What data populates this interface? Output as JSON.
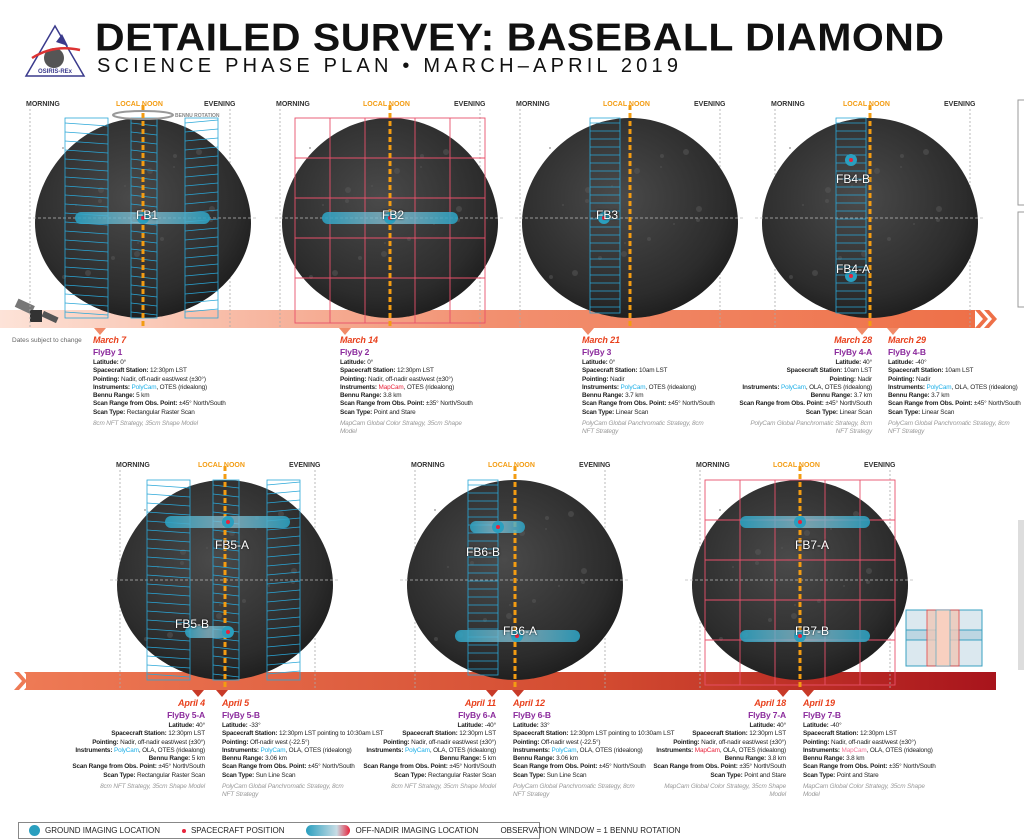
{
  "header": {
    "title": "DETAILED SURVEY: BASEBALL DIAMOND",
    "subtitle": "SCIENCE PHASE PLAN • MARCH–APRIL 2019",
    "logo_text": "OSIRIS-REx"
  },
  "timeline_labels": {
    "morning": "MORNING",
    "local_noon": "LOCAL NOON",
    "evening": "EVENING",
    "bennu_rotation": "BENNU ROTATION"
  },
  "caveat": "Dates subject to change",
  "panels": [
    {
      "labels": [
        "FB1"
      ]
    },
    {
      "labels": [
        "FB2"
      ]
    },
    {
      "labels": [
        "FB3"
      ]
    },
    {
      "labels": [
        "FB4-B",
        "FB4-A"
      ]
    },
    {
      "labels": [
        "FB5-A",
        "FB5-B"
      ]
    },
    {
      "labels": [
        "FB6-B",
        "FB6-A"
      ]
    },
    {
      "labels": [
        "FB7-A",
        "FB7-B"
      ]
    }
  ],
  "field_labels": {
    "latitude": "Latitude:",
    "station": "Spacecraft Station:",
    "pointing": "Pointing:",
    "instruments": "Instruments:",
    "range": "Bennu Range:",
    "scan_range": "Scan Range from Obs. Point:",
    "scan_type": "Scan Type:"
  },
  "flybys": [
    {
      "date": "March 7",
      "name": "FlyBy 1",
      "latitude": "0°",
      "station": "12:30pm LST",
      "pointing": "Nadir, off-nadir east/west (±30°)",
      "instrument": "PolyCam",
      "instrument_color": "poly",
      "instruments_rest": ", OTES (ridealong)",
      "range": "5 km",
      "scan_range": "±45° North/South",
      "scan_type": "Rectangular Raster Scan",
      "note": "8cm NFT Strategy, 35cm Shape Model"
    },
    {
      "date": "March 14",
      "name": "FlyBy 2",
      "latitude": "0°",
      "station": "12:30pm LST",
      "pointing": "Nadir, off-nadir east/west (±30°)",
      "instrument": "MapCam",
      "instrument_color": "map",
      "instruments_rest": ", OTES (ridealong)",
      "range": "3.8 km",
      "scan_range": "±35° North/South",
      "scan_type": "Point and Stare",
      "note": "MapCam Global Color Strategy, 35cm Shape Model"
    },
    {
      "date": "March 21",
      "name": "FlyBy 3",
      "latitude": "0°",
      "station": "10am LST",
      "pointing": "Nadir",
      "instrument": "PolyCam",
      "instrument_color": "poly",
      "instruments_rest": ", OTES (ridealong)",
      "range": "3.7 km",
      "scan_range": "±45° North/South",
      "scan_type": "Linear Scan",
      "note": "PolyCam Global Panchromatic Strategy, 8cm NFT Strategy"
    },
    {
      "date": "March 28",
      "name": "FlyBy 4-A",
      "latitude": "40°",
      "station": "10am LST",
      "pointing": "Nadir",
      "instrument": "PolyCam",
      "instrument_color": "poly",
      "instruments_rest": ", OLA, OTES (ridealong)",
      "range": "3.7 km",
      "scan_range": "±45° North/South",
      "scan_type": "Linear Scan",
      "note": "PolyCam Global Panchromatic Strategy, 8cm NFT Strategy"
    },
    {
      "date": "March 29",
      "name": "FlyBy 4-B",
      "latitude": "-40°",
      "station": "10am LST",
      "pointing": "Nadir",
      "instrument": "PolyCam",
      "instrument_color": "poly",
      "instruments_rest": ", OLA, OTES (ridealong)",
      "range": "3.7 km",
      "scan_range": "±45° North/South",
      "scan_type": "Linear Scan",
      "note": "PolyCam Global Panchromatic Strategy, 8cm NFT Strategy"
    },
    {
      "date": "April 4",
      "name": "FlyBy 5-A",
      "latitude": "40°",
      "station": "12:30pm LST",
      "pointing": "Nadir, off-nadir east/west (±30°)",
      "instrument": "PolyCam",
      "instrument_color": "poly",
      "instruments_rest": ", OLA, OTES (ridealong)",
      "range": "5 km",
      "scan_range": "±45° North/South",
      "scan_type": "Rectangular Raster Scan",
      "note": "8cm NFT Strategy, 35cm Shape Model"
    },
    {
      "date": "April 5",
      "name": "FlyBy 5-B",
      "latitude": "-33°",
      "station": "12:30pm LST pointing to 10:30am LST",
      "pointing": "Off-nadir west (-22.5°)",
      "instrument": "PolyCam",
      "instrument_color": "poly",
      "instruments_rest": ", OLA, OTES (ridealong)",
      "range": "3.06 km",
      "scan_range": "±45° North/South",
      "scan_type": "Sun Line Scan",
      "note": "PolyCam Global Panchromatic Strategy, 8cm NFT Strategy"
    },
    {
      "date": "April 11",
      "name": "FlyBy 6-A",
      "latitude": "-40°",
      "station": "12:30pm LST",
      "pointing": "Nadir, off-nadir east/west (±30°)",
      "instrument": "PolyCam",
      "instrument_color": "poly",
      "instruments_rest": ", OLA, OTES (ridealong)",
      "range": "5 km",
      "scan_range": "±45° North/South",
      "scan_type": "Rectangular Raster Scan",
      "note": "8cm NFT Strategy, 35cm Shape Model"
    },
    {
      "date": "April 12",
      "name": "FlyBy 6-B",
      "latitude": "33°",
      "station": "12:30pm LST pointing to 10:30am LST",
      "pointing": "Off-nadir west (-22.5°)",
      "instrument": "PolyCam",
      "instrument_color": "poly",
      "instruments_rest": ", OLA, OTES (ridealong)",
      "range": "3.06 km",
      "scan_range": "±45° North/South",
      "scan_type": "Sun Line Scan",
      "note": "PolyCam Global Panchromatic Strategy, 8cm NFT Strategy"
    },
    {
      "date": "April 18",
      "name": "FlyBy 7-A",
      "latitude": "40°",
      "station": "12:30pm LST",
      "pointing": "Nadir, off-nadir east/west (±30°)",
      "instrument": "MapCam",
      "instrument_color": "map",
      "instruments_rest": ", OLA, OTES (ridealong)",
      "range": "3.8 km",
      "scan_range": "±35° North/South",
      "scan_type": "Point and Stare",
      "note": "MapCam Global Color Strategy, 35cm Shape Model"
    },
    {
      "date": "April 19",
      "name": "FlyBy 7-B",
      "latitude": "-40°",
      "station": "12:30pm LST",
      "pointing": "Nadir, off-nadir east/west (±30°)",
      "instrument": "MapCam",
      "instrument_color": "mappink",
      "instruments_rest": ", OLA, OTES (ridealong)",
      "range": "3.8 km",
      "scan_range": "±35° North/South",
      "scan_type": "Point and Stare",
      "note": "MapCam Global Color Strategy, 35cm Shape Model"
    }
  ],
  "legend": {
    "ground": "GROUND IMAGING LOCATION",
    "spacecraft": "SPACECRAFT POSITION",
    "off_nadir": "OFF-NADIR IMAGING LOCATION",
    "window": "OBSERVATION WINDOW = 1 BENNU ROTATION"
  },
  "colors": {
    "polycam": "#1fb0e8",
    "mapcam": "#e8243c",
    "date": "#e8401c",
    "flyby": "#8b2a9c",
    "noon": "#f39c12"
  }
}
